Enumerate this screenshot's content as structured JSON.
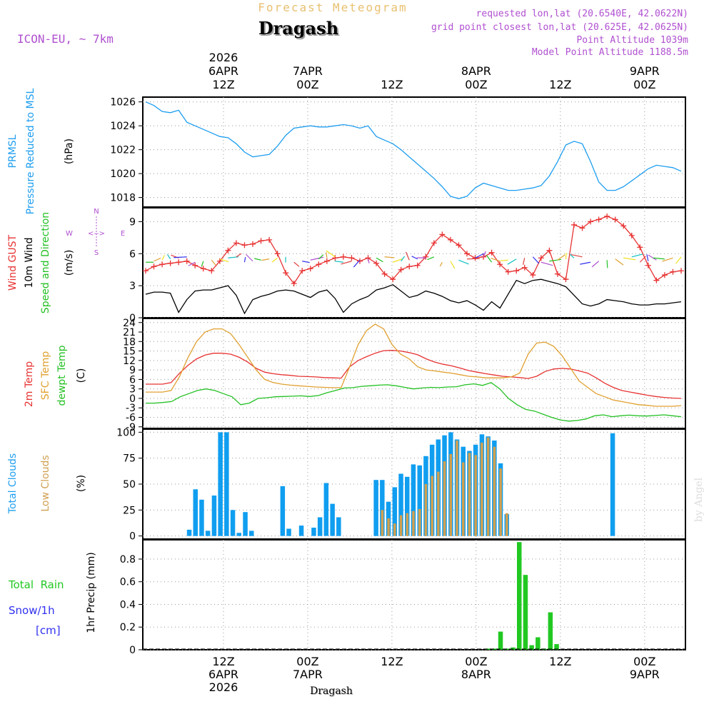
{
  "header": {
    "product": "Forecast Meteogram",
    "location": "Dragash",
    "model": "ICON-EU, ~ 7km",
    "requested": "requested lon,lat (20.6540E, 42.0622N)",
    "grid": "grid point closest lon,lat (20.625E, 42.0625N)",
    "point_alt": "Point Altitude 1039m",
    "model_alt": "Model Point Altitude 1188.5m",
    "footer_location": "Dragash",
    "watermark": "by Angel"
  },
  "colors": {
    "pressure": "#1e9ef0",
    "gust": "#e83232",
    "wind": "#000000",
    "temp": "#e83232",
    "sfc": "#e0a030",
    "dewpt": "#22c022",
    "clouds": "#109ef0",
    "lowclouds": "#d0a050",
    "rain": "#22c822",
    "snow": "#3030f0",
    "compass": "#b050d0",
    "header": "#b050d0",
    "title_gold": "#e8c070"
  },
  "time_axis": {
    "n_hours": 65,
    "top": [
      {
        "h": 0,
        "lines": [
          "2026",
          "6APR",
          "12Z"
        ]
      },
      {
        "h": 12,
        "lines": [
          "7APR",
          "00Z"
        ]
      },
      {
        "h": 24,
        "lines": [
          "12Z"
        ]
      },
      {
        "h": 36,
        "lines": [
          "8APR",
          "00Z"
        ]
      },
      {
        "h": 48,
        "lines": [
          "12Z"
        ]
      },
      {
        "h": 60,
        "lines": [
          "9APR",
          "00Z"
        ]
      }
    ],
    "bottom": [
      {
        "h": 0,
        "lines": [
          "12Z",
          "6APR",
          "2026"
        ]
      },
      {
        "h": 12,
        "lines": [
          "00Z",
          "7APR"
        ]
      },
      {
        "h": 24,
        "lines": [
          "12Z"
        ]
      },
      {
        "h": 36,
        "lines": [
          "00Z",
          "8APR"
        ]
      },
      {
        "h": 48,
        "lines": [
          "12Z"
        ]
      },
      {
        "h": 60,
        "lines": [
          "00Z",
          "9APR"
        ]
      }
    ]
  },
  "chart_data": [
    {
      "type": "line",
      "title": "PRMSL Pressure Reduced to MSL",
      "ylabels": [
        "PRMSL",
        "Pressure Reduced to MSL"
      ],
      "unit": "(hPa)",
      "ylim": [
        1017.2,
        1026.4
      ],
      "yticks": [
        1018,
        1020,
        1022,
        1024,
        1026
      ],
      "series": [
        {
          "name": "Pressure",
          "color": "#1e9ef0",
          "values": [
            1026.0,
            1025.7,
            1025.2,
            1025.1,
            1025.3,
            1024.3,
            1024.0,
            1023.7,
            1023.4,
            1023.1,
            1023.0,
            1022.5,
            1021.8,
            1021.4,
            1021.5,
            1021.6,
            1022.3,
            1023.2,
            1023.8,
            1023.9,
            1024.0,
            1023.9,
            1023.9,
            1024.0,
            1024.1,
            1024.0,
            1023.8,
            1024.0,
            1023.1,
            1022.8,
            1022.5,
            1022.0,
            1021.4,
            1020.8,
            1020.2,
            1019.6,
            1018.9,
            1018.1,
            1017.9,
            1018.1,
            1018.8,
            1019.2,
            1019.0,
            1018.8,
            1018.6,
            1018.6,
            1018.7,
            1018.8,
            1019.0,
            1019.8,
            1021.0,
            1022.4,
            1022.7,
            1022.5,
            1021.0,
            1019.3,
            1018.6,
            1018.6,
            1018.9,
            1019.4,
            1019.9,
            1020.4,
            1020.7,
            1020.6,
            1020.5,
            1020.2
          ]
        }
      ]
    },
    {
      "type": "line",
      "title": "Wind",
      "ylabels": [
        "Wind GUST",
        "10m Wind",
        "Speed and Direction"
      ],
      "unit": "(m/s)",
      "compass": {
        "n": "N",
        "s": "S",
        "w": "W",
        "e": "E",
        "arrow": "<-->"
      },
      "ylim": [
        0,
        10.3
      ],
      "yticks": [
        0,
        3,
        6,
        9
      ],
      "series": [
        {
          "name": "Wind GUST",
          "color": "#e83232",
          "values": [
            4.4,
            4.8,
            5.0,
            5.1,
            5.2,
            5.3,
            4.9,
            4.6,
            4.4,
            5.3,
            6.3,
            7.0,
            6.8,
            6.9,
            7.2,
            7.3,
            6.0,
            4.2,
            3.2,
            4.4,
            4.6,
            5.0,
            5.3,
            5.6,
            5.7,
            5.6,
            5.3,
            5.6,
            5.1,
            4.1,
            3.6,
            4.5,
            4.8,
            4.9,
            5.7,
            7.0,
            7.8,
            7.3,
            6.8,
            6.0,
            5.6,
            5.7,
            6.1,
            5.0,
            4.3,
            4.4,
            4.7,
            4.0,
            5.6,
            6.3,
            4.1,
            3.6,
            8.7,
            8.4,
            9.0,
            9.2,
            9.5,
            9.2,
            8.6,
            7.7,
            6.6,
            4.9,
            3.5,
            4.0,
            4.3,
            4.4
          ]
        },
        {
          "name": "10m Wind",
          "color": "#000000",
          "values": [
            2.2,
            2.4,
            2.4,
            2.3,
            0.5,
            1.7,
            2.5,
            2.6,
            2.6,
            2.8,
            3.0,
            2.1,
            0.4,
            1.7,
            2.0,
            2.2,
            2.5,
            2.6,
            2.5,
            2.2,
            1.9,
            2.4,
            2.6,
            1.8,
            0.5,
            1.3,
            1.7,
            2.0,
            2.6,
            2.8,
            3.1,
            2.5,
            1.9,
            2.1,
            2.5,
            2.3,
            2.0,
            1.6,
            1.4,
            1.6,
            1.2,
            0.7,
            1.5,
            0.9,
            2.2,
            3.5,
            3.2,
            3.5,
            3.6,
            3.4,
            3.2,
            2.9,
            2.1,
            1.3,
            1.1,
            1.3,
            1.7,
            1.6,
            1.5,
            1.3,
            1.2,
            1.2,
            1.3,
            1.3,
            1.4,
            1.5
          ]
        }
      ]
    },
    {
      "type": "line",
      "title": "Temperature",
      "ylabels": [
        "2m Temp",
        "SFC Temp",
        "dewpt Temp"
      ],
      "unit": "(C)",
      "ylim": [
        -9.5,
        25.3
      ],
      "yticks": [
        -9,
        -6,
        -3,
        0,
        3,
        6,
        9,
        12,
        15,
        18,
        21,
        24
      ],
      "series": [
        {
          "name": "2m Temp",
          "color": "#e83232",
          "values": [
            4.5,
            4.5,
            4.5,
            5.0,
            8.0,
            10.5,
            12.5,
            13.7,
            14.3,
            14.3,
            14.0,
            13.0,
            11.5,
            9.5,
            8.3,
            7.8,
            7.5,
            7.3,
            7.0,
            6.9,
            6.8,
            6.6,
            6.5,
            6.4,
            10.0,
            12.0,
            13.2,
            14.3,
            15.1,
            15.2,
            15.0,
            14.5,
            13.8,
            12.5,
            11.5,
            10.8,
            10.3,
            9.6,
            8.8,
            8.3,
            7.8,
            7.4,
            7.0,
            6.8,
            6.6,
            6.3,
            7.0,
            8.5,
            9.3,
            9.5,
            9.3,
            8.7,
            8.0,
            6.5,
            4.8,
            3.5,
            2.5,
            2.0,
            1.5,
            1.0,
            0.6,
            0.3,
            0.1,
            0.0
          ]
        },
        {
          "name": "SFC Temp",
          "color": "#e0a030",
          "values": [
            2.0,
            2.0,
            2.0,
            2.5,
            7.0,
            13.0,
            18.0,
            21.0,
            22.0,
            22.0,
            20.5,
            17.0,
            13.0,
            9.0,
            6.0,
            5.0,
            4.5,
            4.2,
            4.0,
            3.8,
            3.6,
            3.5,
            3.4,
            3.4,
            10.0,
            17.0,
            21.5,
            23.5,
            22.0,
            17.0,
            14.0,
            12.5,
            10.0,
            9.0,
            8.7,
            8.3,
            8.0,
            7.5,
            7.0,
            6.8,
            6.5,
            6.5,
            6.5,
            6.8,
            8.0,
            14.0,
            17.5,
            17.8,
            16.5,
            13.5,
            9.5,
            5.5,
            3.5,
            1.5,
            0.5,
            -0.5,
            -1.0,
            -1.5,
            -2.0,
            -2.2,
            -2.5,
            -2.5,
            -2.5,
            -2.3
          ]
        },
        {
          "name": "dewpt Temp",
          "color": "#22c022",
          "values": [
            -1.5,
            -1.5,
            -1.3,
            -1.0,
            0.5,
            1.5,
            2.5,
            3.0,
            2.5,
            1.5,
            0.5,
            -2.0,
            -1.5,
            0.0,
            0.2,
            0.5,
            0.6,
            0.7,
            0.8,
            0.6,
            0.9,
            1.8,
            2.5,
            3.3,
            3.4,
            3.8,
            4.0,
            4.2,
            4.3,
            4.0,
            3.5,
            3.0,
            3.3,
            3.5,
            3.4,
            3.6,
            3.7,
            4.3,
            4.6,
            4.1,
            5.0,
            3.0,
            0.0,
            -2.0,
            -3.5,
            -4.0,
            -5.0,
            -6.0,
            -6.8,
            -7.2,
            -7.0,
            -6.5,
            -5.5,
            -5.2,
            -5.8,
            -5.5,
            -5.3,
            -5.5,
            -5.6,
            -5.4,
            -5.2,
            -5.5,
            -5.8
          ]
        }
      ]
    },
    {
      "type": "bar",
      "title": "Clouds",
      "ylabels": [
        "Total Clouds",
        "Low Clouds"
      ],
      "unit": "(%)",
      "ylim": [
        -3,
        103
      ],
      "yticks": [
        0,
        25,
        50,
        75,
        100
      ],
      "series": [
        {
          "name": "Total Clouds",
          "color": "#109ef0",
          "values": [
            0,
            0,
            0,
            0,
            0,
            0,
            0,
            6,
            45,
            35,
            5,
            39,
            100,
            100,
            25,
            3,
            23,
            5,
            0,
            0,
            0,
            0,
            48,
            7,
            0,
            10,
            0,
            8,
            18,
            51,
            31,
            18,
            0,
            0,
            0,
            0,
            0,
            54,
            54,
            33,
            47,
            60,
            57,
            69,
            68,
            77,
            88,
            93,
            97,
            100,
            93,
            86,
            82,
            88,
            98,
            96,
            92,
            70,
            21,
            0,
            0,
            0,
            0,
            0,
            0,
            0,
            0,
            0,
            0,
            0,
            0,
            0,
            0,
            0,
            0,
            99,
            0,
            0,
            0,
            0,
            0,
            0,
            0,
            0,
            0,
            0,
            0
          ]
        },
        {
          "name": "Low Clouds",
          "color": "#d0a050",
          "values": [
            0,
            0,
            0,
            0,
            0,
            0,
            0,
            0,
            0,
            0,
            0,
            0,
            0,
            0,
            0,
            0,
            0,
            0,
            0,
            0,
            0,
            0,
            0,
            0,
            0,
            0,
            0,
            0,
            0,
            0,
            0,
            0,
            0,
            0,
            0,
            0,
            0,
            0,
            25,
            17,
            12,
            20,
            22,
            24,
            26,
            50,
            58,
            62,
            72,
            79,
            92,
            71,
            80,
            78,
            90,
            95,
            86,
            65,
            22,
            0,
            0,
            0,
            0,
            0,
            0,
            0,
            0,
            0,
            0,
            0,
            0,
            0,
            0,
            0,
            0,
            0,
            0,
            0,
            0,
            0,
            0,
            0,
            0,
            0,
            0,
            0,
            0
          ]
        }
      ]
    },
    {
      "type": "bar",
      "title": "1hr Precip",
      "ylabels": [
        "Total  Rain",
        "Snow/1h",
        "[cm]"
      ],
      "unit": "1hr Precip (mm)",
      "ylim": [
        0,
        0.97
      ],
      "yticks": [
        0,
        0.2,
        0.4,
        0.6,
        0.8
      ],
      "series": [
        {
          "name": "Total Rain",
          "color": "#22c822",
          "values": [
            0,
            0,
            0,
            0,
            0,
            0,
            0,
            0,
            0,
            0,
            0,
            0,
            0,
            0,
            0,
            0,
            0,
            0,
            0,
            0,
            0,
            0,
            0,
            0,
            0,
            0,
            0,
            0,
            0,
            0,
            0,
            0,
            0,
            0,
            0,
            0,
            0,
            0,
            0,
            0,
            0,
            0,
            0,
            0,
            0,
            0,
            0,
            0,
            0,
            0,
            0,
            0,
            0,
            0,
            0,
            0.01,
            0.01,
            0.16,
            0.01,
            0.02,
            0.95,
            0.66,
            0.04,
            0.11,
            0.01,
            0.33,
            0.05,
            0,
            0,
            0,
            0,
            0,
            0,
            0,
            0,
            0,
            0,
            0,
            0,
            0,
            0,
            0,
            0,
            0,
            0,
            0,
            0
          ]
        }
      ]
    }
  ]
}
